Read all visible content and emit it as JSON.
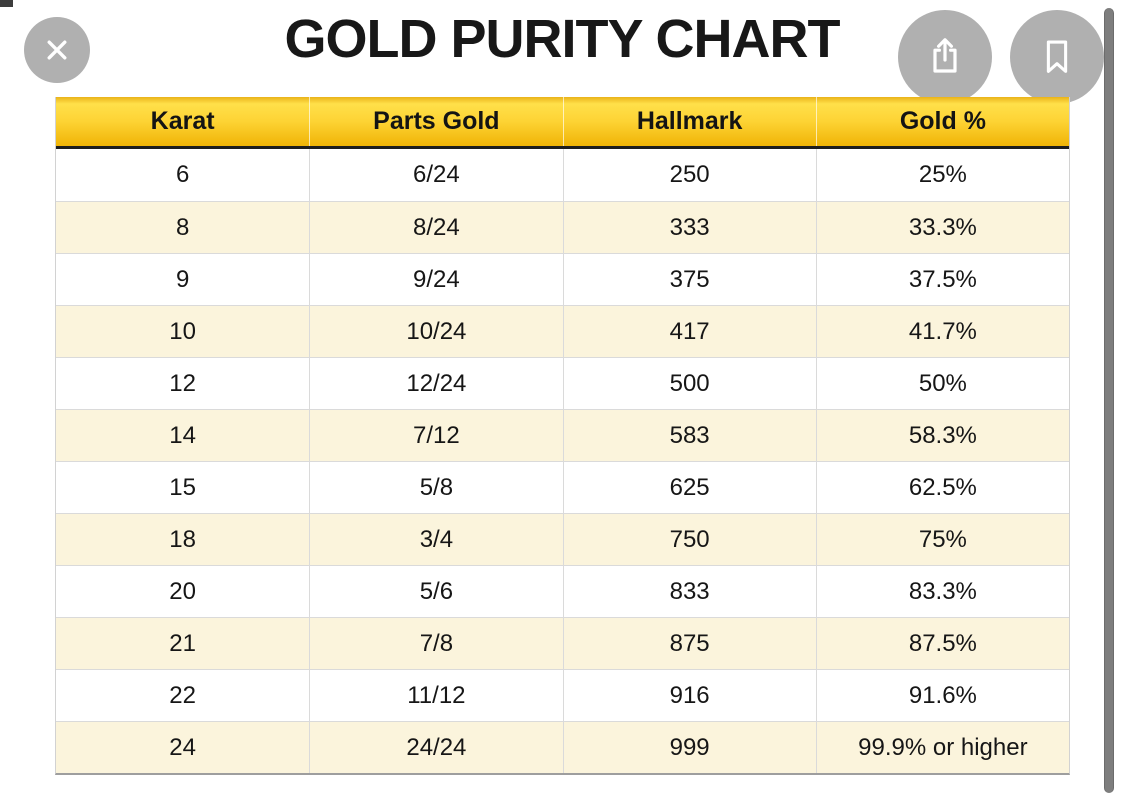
{
  "title": "GOLD PURITY CHART",
  "toolbar": {
    "close_icon": "x-cross",
    "share_icon": "share-up-arrow",
    "bookmark_icon": "bookmark-outline"
  },
  "colors": {
    "header_gradient_top": "#ffe04a",
    "header_gradient_bottom": "#f0b406",
    "row_alt_cream": "#fbf4dc",
    "button_circle_gray": "#b0b0b0",
    "scrollbar_gray": "#7e7e7e",
    "text_black": "#161616"
  },
  "chart_data": {
    "type": "table",
    "title": "GOLD PURITY CHART",
    "columns": [
      "Karat",
      "Parts Gold",
      "Hallmark",
      "Gold %"
    ],
    "rows": [
      [
        "6",
        "6/24",
        "250",
        "25%"
      ],
      [
        "8",
        "8/24",
        "333",
        "33.3%"
      ],
      [
        "9",
        "9/24",
        "375",
        "37.5%"
      ],
      [
        "10",
        "10/24",
        "417",
        "41.7%"
      ],
      [
        "12",
        "12/24",
        "500",
        "50%"
      ],
      [
        "14",
        "7/12",
        "583",
        "58.3%"
      ],
      [
        "15",
        "5/8",
        "625",
        "62.5%"
      ],
      [
        "18",
        "3/4",
        "750",
        "75%"
      ],
      [
        "20",
        "5/6",
        "833",
        "83.3%"
      ],
      [
        "21",
        "7/8",
        "875",
        "87.5%"
      ],
      [
        "22",
        "11/12",
        "916",
        "91.6%"
      ],
      [
        "24",
        "24/24",
        "999",
        "99.9% or higher"
      ]
    ],
    "layout": {
      "alternating_rows": true,
      "first_data_row_background": "white",
      "header_style": "yellow-gradient-bold"
    }
  }
}
